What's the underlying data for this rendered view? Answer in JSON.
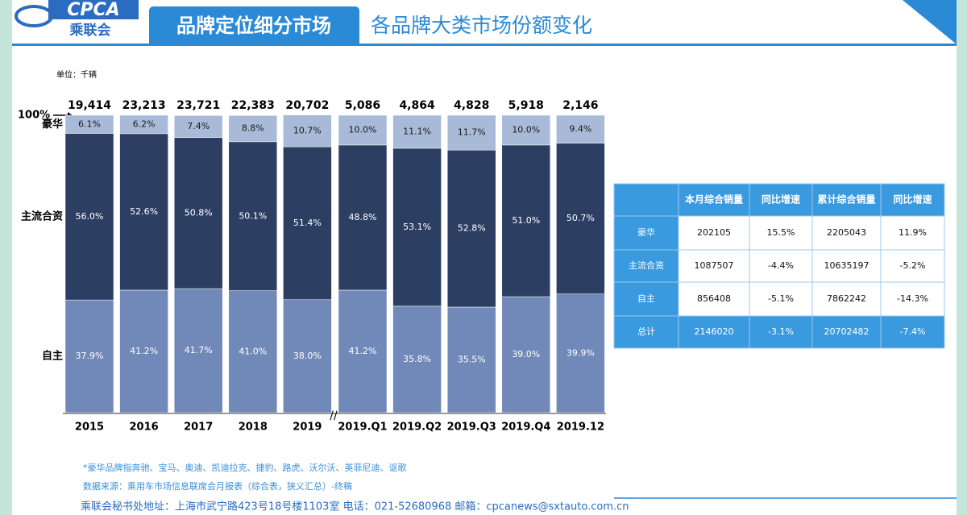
{
  "header": {
    "logo": "CPCA",
    "logo_cn": "乘联会",
    "section": "品牌定位细分市场",
    "title": "各品牌大类市场份额变化"
  },
  "chart_data": {
    "type": "bar",
    "stacked": true,
    "unit": "单位：千辆",
    "categories": [
      "2015",
      "2016",
      "2017",
      "2018",
      "2019",
      "2019.Q1",
      "2019.Q2",
      "2019.Q3",
      "2019.Q4",
      "2019.12"
    ],
    "series": [
      {
        "name": "自主",
        "color": "#7189b8",
        "values": [
          37.9,
          41.2,
          41.7,
          41.0,
          38.0,
          41.2,
          35.8,
          35.5,
          39.0,
          39.9
        ],
        "value_labels": [
          "37.9%",
          "41.2%",
          "41.7%",
          "41.0%",
          "38.0%",
          "41.2%",
          "35.8%",
          "35.5%",
          "39.0%",
          "39.9%"
        ]
      },
      {
        "name": "主流合资",
        "color": "#2c3f63",
        "values": [
          56.0,
          52.6,
          50.8,
          50.1,
          51.4,
          48.8,
          53.1,
          52.8,
          51.0,
          50.7
        ],
        "value_labels": [
          "56.0%",
          "52.6%",
          "50.8%",
          "50.1%",
          "51.4%",
          "48.8%",
          "53.1%",
          "52.8%",
          "51.0%",
          "50.7%"
        ]
      },
      {
        "name": "豪华",
        "color": "#a8bad8",
        "values": [
          6.1,
          6.2,
          7.4,
          8.8,
          10.7,
          10.0,
          11.1,
          11.7,
          10.0,
          9.4
        ],
        "value_labels": [
          "6.1%",
          "6.2%",
          "7.4%",
          "8.8%",
          "10.7%",
          "10.0%",
          "11.1%",
          "11.7%",
          "10.0%",
          "9.4%"
        ]
      }
    ],
    "totals": {
      "values": [
        19414,
        23213,
        23721,
        22383,
        20702,
        5086,
        4864,
        4828,
        5918,
        2146
      ],
      "value_labels": [
        "19,414",
        "23,213",
        "23,721",
        "22,383",
        "20,702",
        "5,086",
        "4,864",
        "4,828",
        "5,918",
        "2,146"
      ]
    },
    "ylim": [
      0,
      100
    ],
    "yticks": [
      {
        "value": 100,
        "label": "100%"
      }
    ]
  },
  "table": {
    "header": [
      "本月综合销量",
      "同比增速",
      "累计综合销量",
      "同比增速"
    ],
    "rows": [
      [
        "豪华",
        "202105",
        "15.5%",
        "2205043",
        "11.9%"
      ],
      [
        "主流合资",
        "1087507",
        "-4.4%",
        "10635197",
        "-5.2%"
      ],
      [
        "自主",
        "856408",
        "-5.1%",
        "7862242",
        "-14.3%"
      ],
      [
        "总计",
        "2146020",
        "-3.1%",
        "20702482",
        "-7.4%"
      ]
    ]
  },
  "notes": [
    "*豪华品牌指奔驰、宝马、奥迪、凯迪拉克、捷豹、路虎、沃尔沃、英菲尼迪、讴歌",
    "数据来源：乘用车市场信息联席会月报表（综合表，狭义汇总）-终稿"
  ],
  "footer": "乘联会秘书处地址：上海市武宁路423号18号楼1103室  电话：021-52680968  邮箱：cpcanews@sxtauto.com.cn"
}
